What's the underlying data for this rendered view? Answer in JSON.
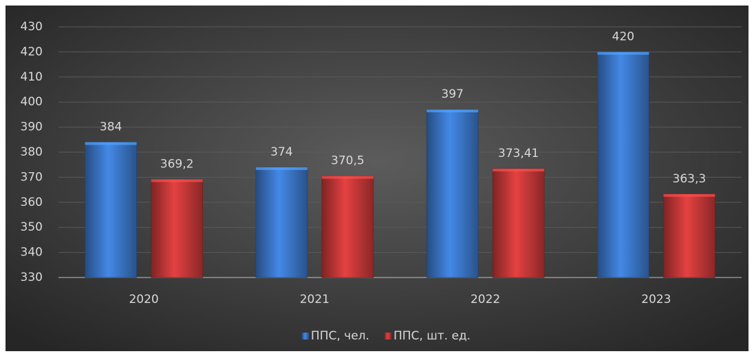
{
  "chart_data": {
    "type": "bar",
    "categories": [
      "2020",
      "2021",
      "2022",
      "2023"
    ],
    "series": [
      {
        "name": "ППС, чел.",
        "color": "#3f7fd6",
        "values": [
          384,
          374,
          397,
          420
        ]
      },
      {
        "name": "ППС, шт. ед.",
        "color": "#d43c3c",
        "values": [
          369.2,
          370.5,
          373.41,
          363.3
        ],
        "value_labels": [
          "369,2",
          "370,5",
          "373,41",
          "363,3"
        ]
      }
    ],
    "ylim": [
      330,
      430
    ],
    "yticks": [
      330,
      340,
      350,
      360,
      370,
      380,
      390,
      400,
      410,
      420,
      430
    ],
    "grid": true,
    "legend": "bottom"
  }
}
